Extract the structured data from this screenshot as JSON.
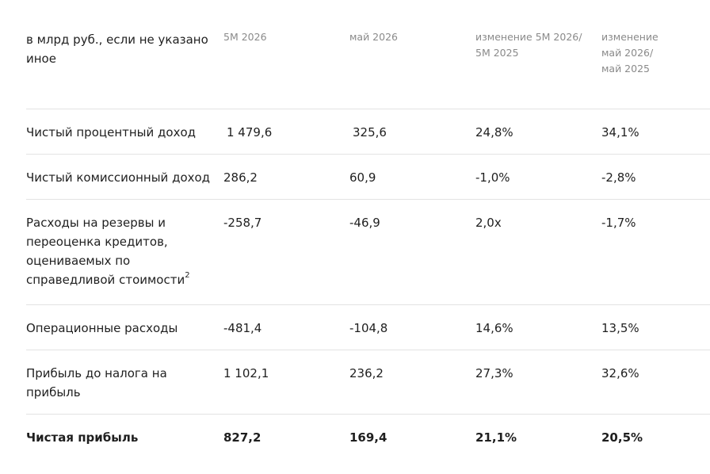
{
  "table": {
    "header": {
      "label": "в млрд руб., если не указано иное",
      "col1": "5М 2026",
      "col2": "май 2026",
      "col3": "изменение 5М 2026/ 5М 2025",
      "col4": "изменение май 2026/ май 2025"
    },
    "rows": [
      {
        "label": "Чистый процентный доход",
        "v1": "1 479,6",
        "v2": "325,6",
        "v3": "24,8%",
        "v4": "34,1%"
      },
      {
        "label": "Чистый комиссионный доход",
        "v1": "286,2",
        "v2": "60,9",
        "v3": "-1,0%",
        "v4": "-2,8%"
      },
      {
        "label": "Расходы на резервы и переоценка кредитов, оцениваемых по справедливой стоимости",
        "footnote": "2",
        "v1": "-258,7",
        "v2": "-46,9",
        "v3": "2,0x",
        "v4": "-1,7%"
      },
      {
        "label": "Операционные расходы",
        "v1": "-481,4",
        "v2": "-104,8",
        "v3": "14,6%",
        "v4": "13,5%"
      },
      {
        "label": "Прибыль до налога на прибыль",
        "v1": "1 102,1",
        "v2": "236,2",
        "v3": "27,3%",
        "v4": "32,6%"
      },
      {
        "label": "Чистая прибыль",
        "v1": "827,2",
        "v2": "169,4",
        "v3": "21,1%",
        "v4": "20,5%"
      }
    ]
  }
}
